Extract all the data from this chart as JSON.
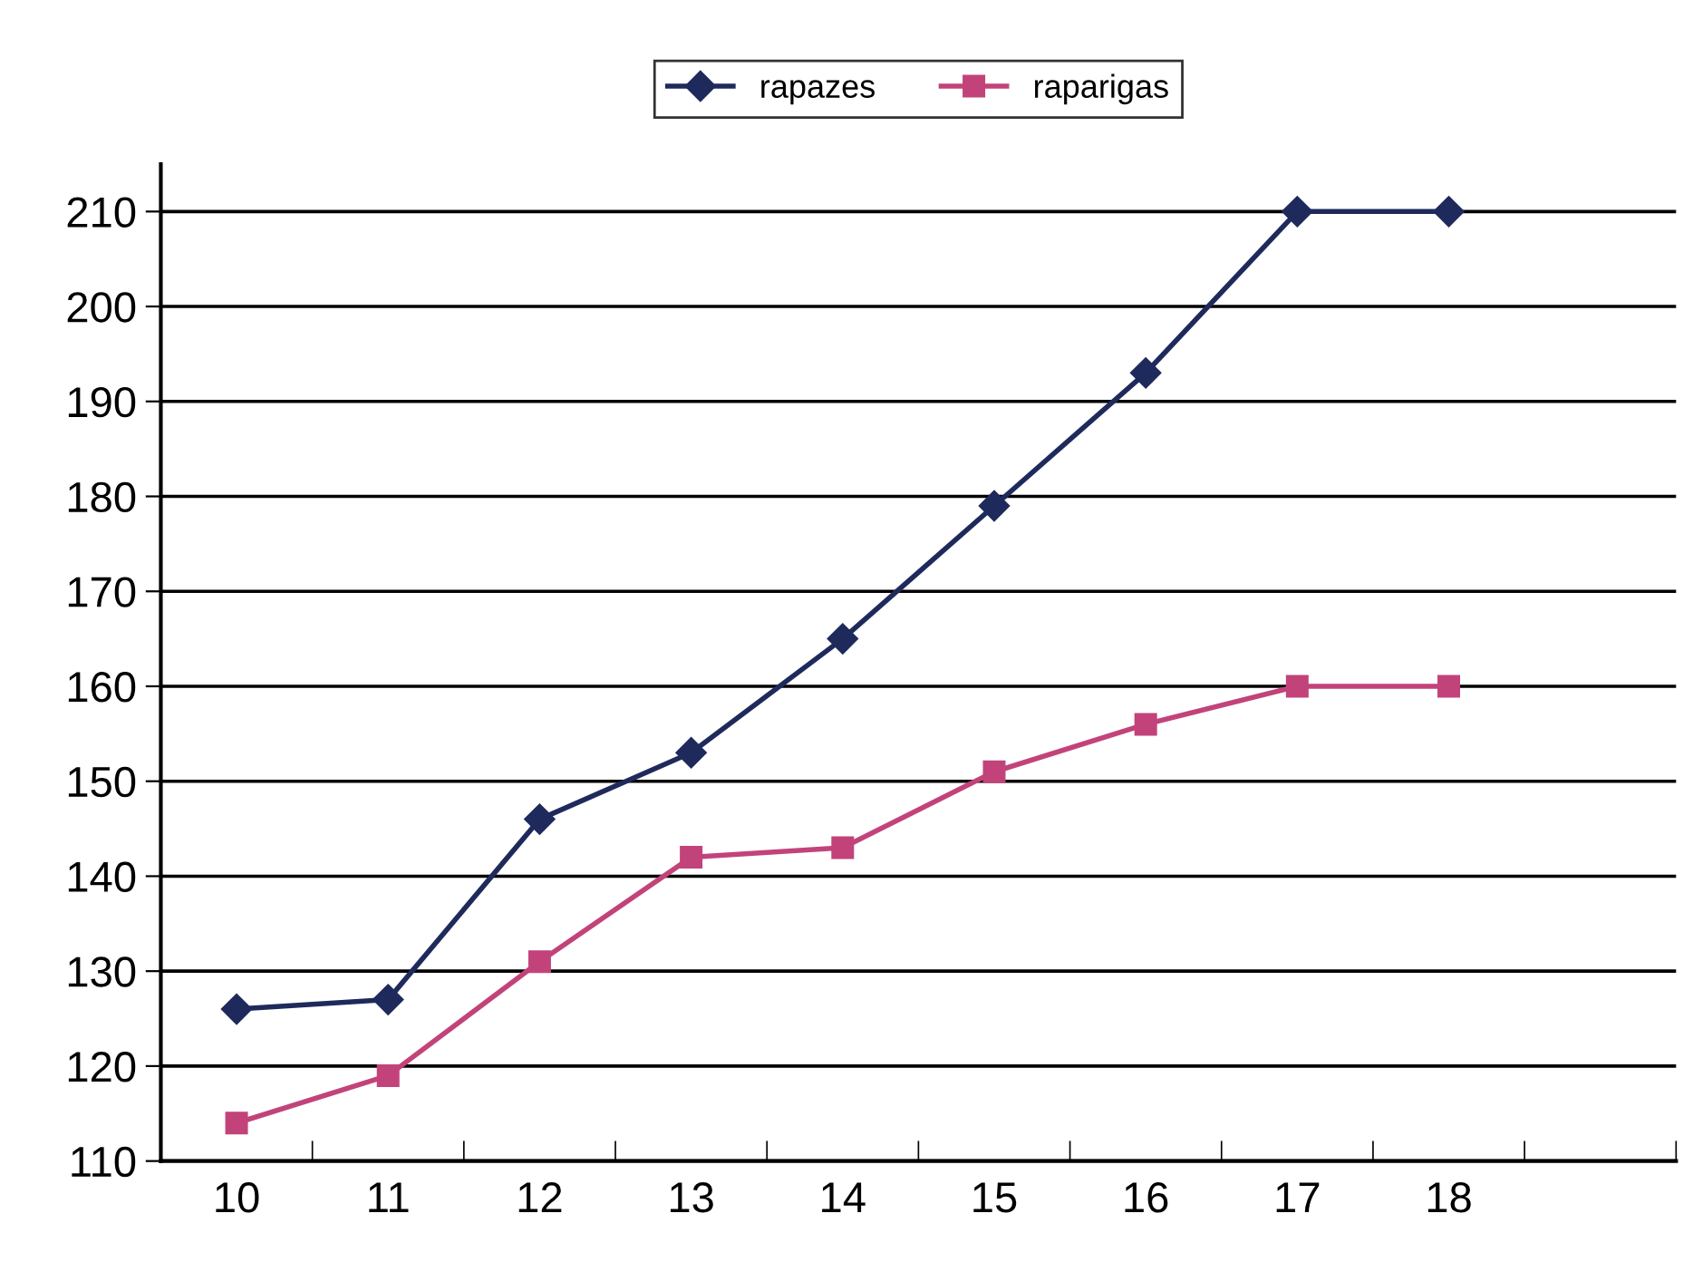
{
  "chart_data": {
    "type": "line",
    "categories": [
      "10",
      "11",
      "12",
      "13",
      "14",
      "15",
      "16",
      "17",
      "18",
      null
    ],
    "series": [
      {
        "name": "rapazes",
        "color": "#1f2a5c",
        "marker": "diamond",
        "values": [
          126,
          127,
          146,
          153,
          165,
          179,
          193,
          210,
          210,
          null
        ]
      },
      {
        "name": "raparigas",
        "color": "#c2437a",
        "marker": "square",
        "values": [
          114,
          119,
          131,
          142,
          143,
          151,
          156,
          160,
          160,
          null
        ]
      }
    ],
    "ylim": [
      110,
      215
    ],
    "yticks": [
      110,
      120,
      130,
      140,
      150,
      160,
      170,
      180,
      190,
      200,
      210
    ],
    "grid": "y",
    "legend": "top",
    "line_style": "solid"
  }
}
